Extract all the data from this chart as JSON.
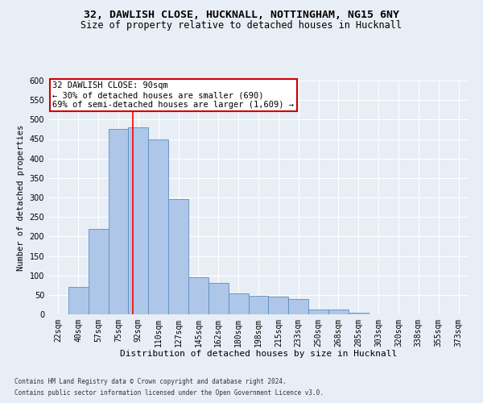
{
  "title1": "32, DAWLISH CLOSE, HUCKNALL, NOTTINGHAM, NG15 6NY",
  "title2": "Size of property relative to detached houses in Hucknall",
  "xlabel": "Distribution of detached houses by size in Hucknall",
  "ylabel": "Number of detached properties",
  "footer1": "Contains HM Land Registry data © Crown copyright and database right 2024.",
  "footer2": "Contains public sector information licensed under the Open Government Licence v3.0.",
  "categories": [
    "22sqm",
    "40sqm",
    "57sqm",
    "75sqm",
    "92sqm",
    "110sqm",
    "127sqm",
    "145sqm",
    "162sqm",
    "180sqm",
    "198sqm",
    "215sqm",
    "233sqm",
    "250sqm",
    "268sqm",
    "285sqm",
    "303sqm",
    "320sqm",
    "338sqm",
    "355sqm",
    "373sqm"
  ],
  "values": [
    0,
    70,
    220,
    475,
    480,
    450,
    295,
    95,
    80,
    53,
    47,
    45,
    40,
    12,
    12,
    5,
    0,
    0,
    0,
    0,
    0
  ],
  "bar_color": "#aec6e8",
  "bar_edge_color": "#5a8fc0",
  "red_line_x": 3.72,
  "annotation_line1": "32 DAWLISH CLOSE: 90sqm",
  "annotation_line2": "← 30% of detached houses are smaller (690)",
  "annotation_line3": "69% of semi-detached houses are larger (1,609) →",
  "annotation_box_color": "#ffffff",
  "annotation_border_color": "#cc0000",
  "ylim": [
    0,
    600
  ],
  "yticks": [
    0,
    50,
    100,
    150,
    200,
    250,
    300,
    350,
    400,
    450,
    500,
    550,
    600
  ],
  "bg_color": "#e8eef5",
  "grid_color": "#ffffff",
  "title1_fontsize": 9.5,
  "title2_fontsize": 8.5,
  "xlabel_fontsize": 8,
  "ylabel_fontsize": 7.5,
  "tick_fontsize": 7,
  "annotation_fontsize": 7.5,
  "footer_fontsize": 5.5
}
